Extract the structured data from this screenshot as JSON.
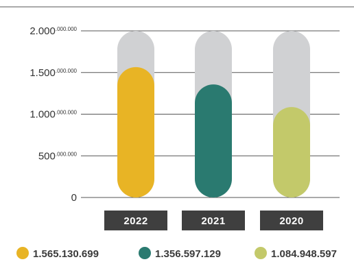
{
  "chart_data": {
    "type": "bar",
    "categories": [
      "2022",
      "2021",
      "2020"
    ],
    "values": [
      1565130699,
      1356597129,
      1084948597
    ],
    "ylim": [
      0,
      2000000000
    ],
    "y_ticks": [
      {
        "value": 0,
        "main": "0",
        "sup": ""
      },
      {
        "value": 500000000,
        "main": "500",
        "sup": ".000.000"
      },
      {
        "value": 1000000000,
        "main": "1.000",
        "sup": ".000.000"
      },
      {
        "value": 1500000000,
        "main": "1.500",
        "sup": ".000.000"
      },
      {
        "value": 2000000000,
        "main": "2.000",
        "sup": ".000.000"
      }
    ],
    "legend": [
      {
        "label": "1.565.130.699",
        "color": "#E8B425"
      },
      {
        "label": "1.356.597.129",
        "color": "#2A7A70"
      },
      {
        "label": "1.084.948.597",
        "color": "#C3C96A"
      }
    ],
    "colors": {
      "bars": [
        "#E8B425",
        "#2A7A70",
        "#C3C96A"
      ],
      "track": "#D0D1D3",
      "category_box": "#3F3F3F",
      "gridline": "#555555"
    },
    "grid": true,
    "legend_position": "bottom"
  }
}
